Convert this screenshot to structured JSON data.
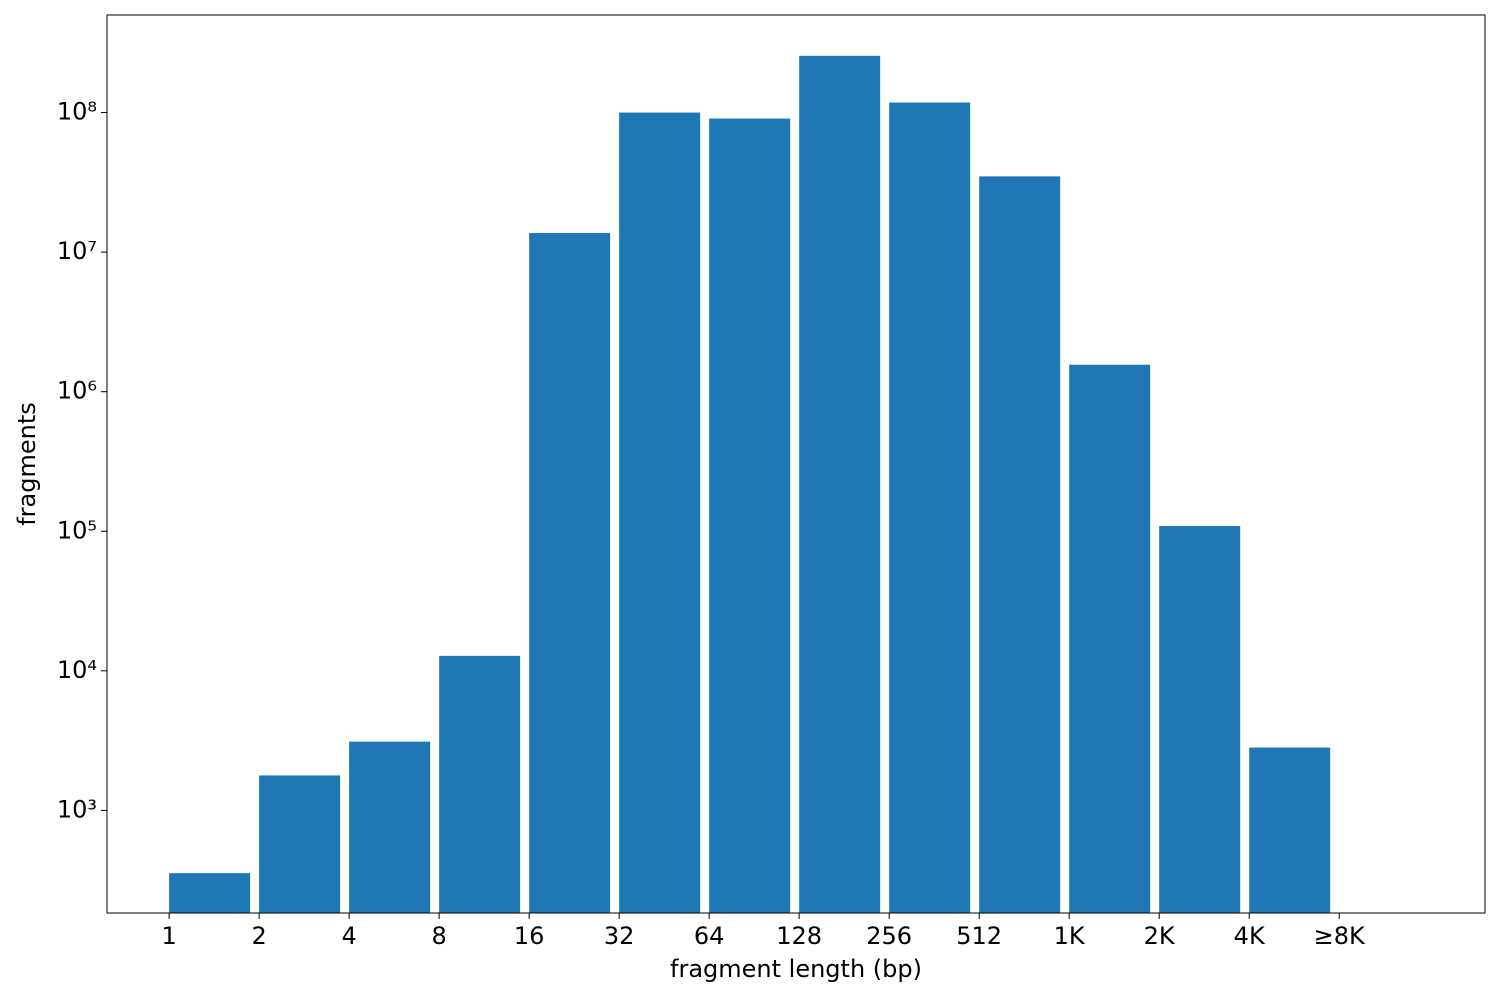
{
  "chart_data": {
    "type": "histogram",
    "x_label": "fragment length (bp)",
    "y_label": "fragments",
    "bins": [
      0,
      1,
      2,
      3,
      4,
      5,
      6,
      7,
      8,
      9,
      10,
      11,
      12,
      13
    ],
    "values": [
      355,
      1780,
      3110,
      12800,
      13700000,
      100000000,
      90600000,
      255000000,
      118000000,
      34900000,
      1560000,
      109000,
      2820
    ],
    "color": "#1f77b4",
    "bar_width": 0.9,
    "xlim": [
      -0.69,
      14.62
    ],
    "xticks": [
      {
        "value": 0,
        "label": "1"
      },
      {
        "value": 1,
        "label": "2"
      },
      {
        "value": 2,
        "label": "4"
      },
      {
        "value": 3,
        "label": "8"
      },
      {
        "value": 4,
        "label": "16"
      },
      {
        "value": 5,
        "label": "32"
      },
      {
        "value": 6,
        "label": "64"
      },
      {
        "value": 7,
        "label": "128"
      },
      {
        "value": 8,
        "label": "256"
      },
      {
        "value": 9,
        "label": "512"
      },
      {
        "value": 10,
        "label": "1K"
      },
      {
        "value": 11,
        "label": "2K"
      },
      {
        "value": 12,
        "label": "4K"
      },
      {
        "value": 13,
        "label": "≥8K"
      }
    ],
    "ylim": [
      184,
      500000000
    ],
    "y_log": true,
    "yticks": [
      {
        "value": 1000,
        "label": "10³"
      },
      {
        "value": 10000,
        "label": "10⁴"
      },
      {
        "value": 100000,
        "label": "10⁵"
      },
      {
        "value": 1000000,
        "label": "10⁶"
      },
      {
        "value": 10000000,
        "label": "10⁷"
      },
      {
        "value": 100000000,
        "label": "10⁸"
      }
    ]
  }
}
